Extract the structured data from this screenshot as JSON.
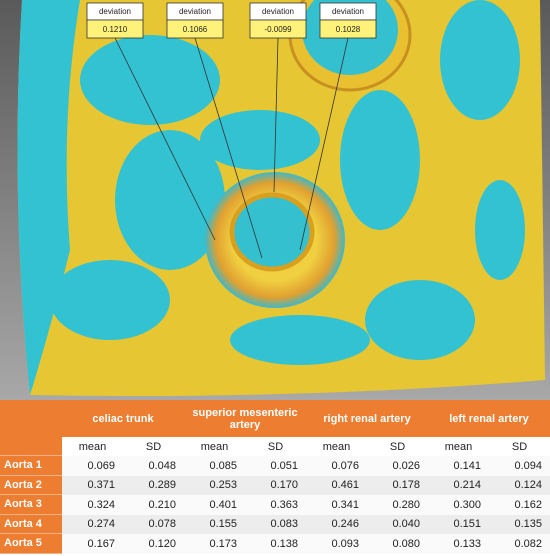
{
  "annotations": [
    {
      "label": "deviation",
      "value": "0.1210"
    },
    {
      "label": "deviation",
      "value": "0.1066"
    },
    {
      "label": "deviation",
      "value": "-0.0099"
    },
    {
      "label": "deviation",
      "value": "0.1028"
    }
  ],
  "table": {
    "groups": [
      "celiac trunk",
      "superior mesenteric artery",
      "right renal artery",
      "left renal artery"
    ],
    "subheaders": [
      "mean",
      "SD",
      "mean",
      "SD",
      "mean",
      "SD",
      "mean",
      "SD"
    ],
    "rows": [
      {
        "label": "Aorta 1",
        "cells": [
          "0.069",
          "0.048",
          "0.085",
          "0.051",
          "0.076",
          "0.026",
          "0.141",
          "0.094"
        ]
      },
      {
        "label": "Aorta 2",
        "cells": [
          "0.371",
          "0.289",
          "0.253",
          "0.170",
          "0.461",
          "0.178",
          "0.214",
          "0.124"
        ]
      },
      {
        "label": "Aorta 3",
        "cells": [
          "0.324",
          "0.210",
          "0.401",
          "0.363",
          "0.341",
          "0.280",
          "0.300",
          "0.162"
        ]
      },
      {
        "label": "Aorta 4",
        "cells": [
          "0.274",
          "0.078",
          "0.155",
          "0.083",
          "0.246",
          "0.040",
          "0.151",
          "0.135"
        ]
      },
      {
        "label": "Aorta 5",
        "cells": [
          "0.167",
          "0.120",
          "0.173",
          "0.138",
          "0.093",
          "0.080",
          "0.133",
          "0.082"
        ]
      }
    ]
  }
}
